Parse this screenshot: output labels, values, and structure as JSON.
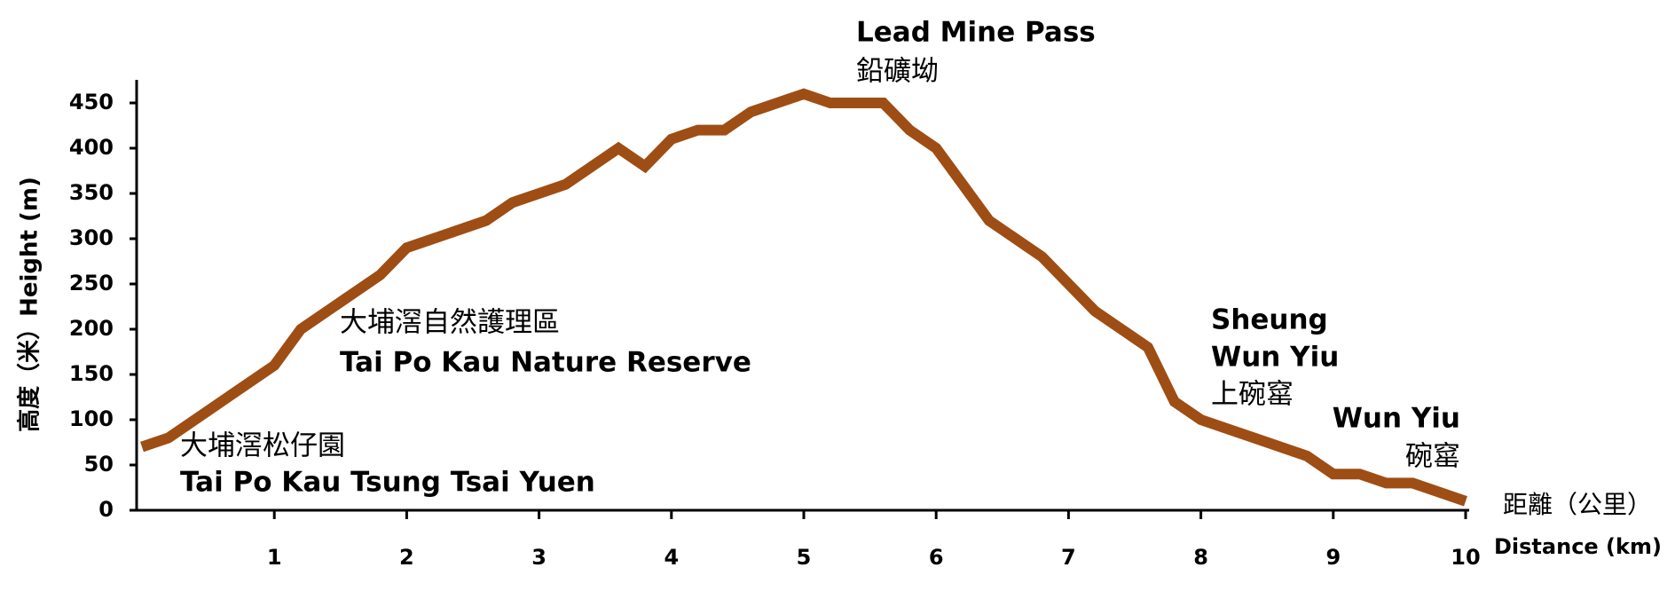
{
  "chart_data": {
    "type": "line",
    "y_label": "高度（米）Height (m)",
    "x_label": [
      "距離（公里）",
      "Distance (km)"
    ],
    "annotations": [
      [
        "Lead Mine Pass",
        "鉛礦坳"
      ],
      [
        "大埔滘自然護理區",
        "Tai Po Kau Nature Reserve"
      ],
      [
        "大埔滘松仔園",
        "Tai Po Kau Tsung Tsai Yuen"
      ],
      [
        "Sheung",
        "Wun Yiu",
        "上碗窰"
      ],
      [
        "Wun Yiu",
        "碗窰"
      ]
    ],
    "series": [
      {
        "name": "Height",
        "color": "#9e4e14",
        "x": [
          0,
          0.2,
          1.0,
          1.2,
          1.8,
          2.0,
          2.6,
          2.8,
          3.2,
          3.6,
          3.8,
          4.0,
          4.2,
          4.4,
          4.6,
          5.0,
          5.2,
          5.6,
          5.8,
          6.0,
          6.4,
          6.8,
          7.2,
          7.6,
          7.8,
          8.0,
          8.8,
          9.0,
          9.2,
          9.4,
          9.6,
          10
        ],
        "values": [
          70,
          80,
          160,
          200,
          260,
          290,
          320,
          340,
          360,
          400,
          380,
          410,
          420,
          420,
          440,
          460,
          450,
          450,
          420,
          400,
          320,
          280,
          220,
          180,
          120,
          100,
          60,
          40,
          40,
          30,
          30,
          10
        ]
      }
    ],
    "xlim": [
      0,
      10
    ],
    "xticks": [
      1,
      2,
      3,
      4,
      5,
      6,
      7,
      8,
      9,
      10
    ],
    "ylim": [
      0,
      450
    ],
    "yticks": [
      0,
      50,
      100,
      150,
      200,
      250,
      300,
      350,
      400,
      450
    ]
  }
}
